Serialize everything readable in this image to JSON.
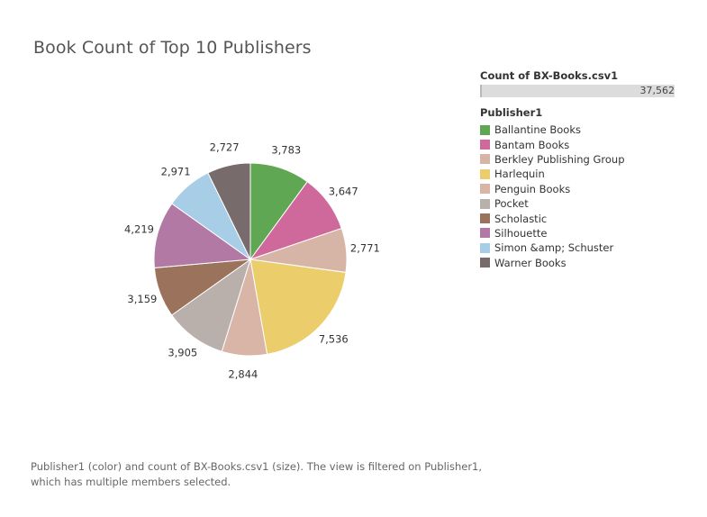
{
  "title": "Book Count of Top 10 Publishers",
  "size_legend": {
    "header": "Count of BX-Books.csv1",
    "value_label": "37,562"
  },
  "color_legend": {
    "header": "Publisher1"
  },
  "caption": "Publisher1 (color) and count of BX-Books.csv1 (size). The view is filtered on Publisher1, which has multiple members selected.",
  "chart_data": {
    "type": "pie",
    "title": "Book Count of Top 10 Publishers",
    "size_field": "Count of BX-Books.csv1",
    "color_field": "Publisher1",
    "total": 37562,
    "slices": [
      {
        "label": "Ballantine Books",
        "value": 3783,
        "value_label": "3,783",
        "color": "#5fa753"
      },
      {
        "label": "Bantam Books",
        "value": 3647,
        "value_label": "3,647",
        "color": "#d0699b"
      },
      {
        "label": "Berkley Publishing Group",
        "value": 2771,
        "value_label": "2,771",
        "color": "#d7b5a6"
      },
      {
        "label": "Harlequin",
        "value": 7536,
        "value_label": "7,536",
        "color": "#eccd6c"
      },
      {
        "label": "Penguin Books",
        "value": 2844,
        "value_label": "2,844",
        "color": "#d9b5a8"
      },
      {
        "label": "Pocket",
        "value": 3905,
        "value_label": "3,905",
        "color": "#bab0ab"
      },
      {
        "label": "Scholastic",
        "value": 3159,
        "value_label": "3,159",
        "color": "#9b725c"
      },
      {
        "label": "Silhouette",
        "value": 4219,
        "value_label": "4,219",
        "color": "#b179a3"
      },
      {
        "label": "Simon &amp; Schuster",
        "value": 2971,
        "value_label": "2,971",
        "color": "#a8cde7"
      },
      {
        "label": "Warner Books",
        "value": 2727,
        "value_label": "2,727",
        "color": "#776b6b"
      }
    ]
  }
}
